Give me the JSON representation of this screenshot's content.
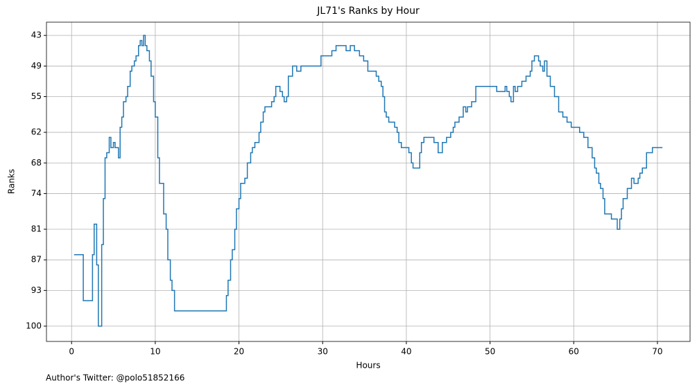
{
  "chart_data": {
    "type": "line",
    "drawstyle": "steps-post",
    "title": "JL71's Ranks by Hour",
    "x_label": "Hours",
    "y_label": "Ranks",
    "footnote": "Author's Twitter: @polo51852166",
    "grid": true,
    "xlim": [
      -3,
      73.9
    ],
    "ylim": [
      103,
      40.4
    ],
    "xticks": [
      0,
      10,
      20,
      30,
      40,
      50,
      60,
      70
    ],
    "yticks": [
      43,
      49,
      55,
      62,
      68,
      74,
      81,
      87,
      93,
      100
    ],
    "series": [
      {
        "color": "#1f77b4",
        "x": [
          0.3,
          1.4,
          2.5,
          2.7,
          3.0,
          3.2,
          3.6,
          3.8,
          4.0,
          4.2,
          4.5,
          4.7,
          5.0,
          5.2,
          5.6,
          5.8,
          6.0,
          6.2,
          6.5,
          6.7,
          7.0,
          7.2,
          7.5,
          7.7,
          8.0,
          8.2,
          8.4,
          8.6,
          8.8,
          9.0,
          9.3,
          9.5,
          9.8,
          10.0,
          10.3,
          10.5,
          11.0,
          11.3,
          11.5,
          11.8,
          12.0,
          12.3,
          18.5,
          18.7,
          19.0,
          19.2,
          19.5,
          19.7,
          20.0,
          20.2,
          20.7,
          21.0,
          21.4,
          21.6,
          21.9,
          22.4,
          22.6,
          22.9,
          23.1,
          23.9,
          24.2,
          24.4,
          24.9,
          25.2,
          25.4,
          25.7,
          25.9,
          26.4,
          26.9,
          27.4,
          29.8,
          31.1,
          31.6,
          32.8,
          33.3,
          33.8,
          34.4,
          34.9,
          35.4,
          36.4,
          36.7,
          37.0,
          37.2,
          37.4,
          37.6,
          37.9,
          38.6,
          38.9,
          39.1,
          39.4,
          40.3,
          40.6,
          40.8,
          41.6,
          41.8,
          42.1,
          43.3,
          43.8,
          44.3,
          44.8,
          45.3,
          45.6,
          45.8,
          46.3,
          46.8,
          47.1,
          47.3,
          47.8,
          48.3,
          50.8,
          51.8,
          52.0,
          52.3,
          52.5,
          52.8,
          53.0,
          53.3,
          53.8,
          54.3,
          54.8,
          55.0,
          55.3,
          55.8,
          56.0,
          56.3,
          56.5,
          56.8,
          57.2,
          57.7,
          58.2,
          58.7,
          59.2,
          59.7,
          60.7,
          61.2,
          61.7,
          62.2,
          62.5,
          62.7,
          63.0,
          63.2,
          63.5,
          63.7,
          64.5,
          65.2,
          65.5,
          65.7,
          65.9,
          66.4,
          66.9,
          67.2,
          67.7,
          67.9,
          68.2,
          68.7,
          69.4,
          70.6
        ],
        "values": [
          86,
          95,
          86,
          80,
          88,
          100,
          84,
          75,
          67,
          66,
          63,
          65,
          64,
          65,
          67,
          61,
          59,
          56,
          55,
          53,
          50,
          49,
          48,
          47,
          45,
          44,
          45,
          43,
          45,
          46,
          48,
          51,
          56,
          59,
          67,
          72,
          78,
          81,
          87,
          91,
          93,
          97,
          94,
          91,
          87,
          85,
          81,
          77,
          75,
          72,
          71,
          68,
          66,
          65,
          64,
          62,
          60,
          58,
          57,
          56,
          55,
          53,
          54,
          55,
          56,
          55,
          51,
          49,
          50,
          49,
          47,
          46,
          45,
          46,
          45,
          46,
          47,
          48,
          50,
          51,
          52,
          53,
          55,
          58,
          59,
          60,
          61,
          62,
          64,
          65,
          66,
          68,
          69,
          66,
          64,
          63,
          64,
          66,
          64,
          63,
          62,
          61,
          60,
          59,
          57,
          58,
          57,
          56,
          53,
          54,
          53,
          54,
          55,
          56,
          53,
          54,
          53,
          52,
          51,
          50,
          48,
          47,
          48,
          49,
          50,
          48,
          51,
          53,
          55,
          58,
          59,
          60,
          61,
          62,
          63,
          65,
          67,
          69,
          70,
          72,
          73,
          75,
          78,
          79,
          81,
          79,
          77,
          75,
          73,
          71,
          72,
          71,
          70,
          69,
          66,
          65,
          65
        ]
      }
    ]
  }
}
